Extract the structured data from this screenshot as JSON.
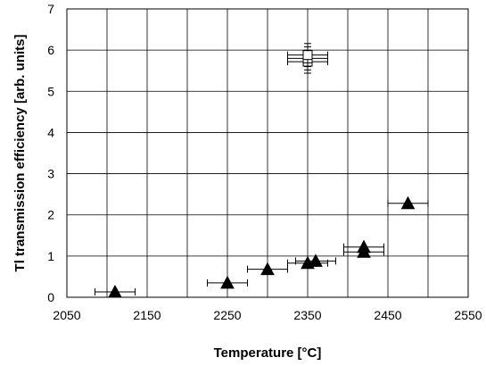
{
  "chart_data": {
    "type": "scatter",
    "title": "",
    "xlabel": "Temperature [°C]",
    "ylabel": "Tl transmission efficiency [arb. units]",
    "xlim": [
      2050,
      2550
    ],
    "ylim": [
      0,
      7
    ],
    "x_ticks": [
      2050,
      2150,
      2250,
      2350,
      2450,
      2550
    ],
    "y_ticks": [
      0,
      1,
      2,
      3,
      4,
      5,
      6,
      7
    ],
    "x_minor_step": 50,
    "grid": true,
    "legend": "none",
    "series": [
      {
        "marker": "triangle",
        "color": "#000000",
        "points": [
          {
            "x": 2110,
            "y": 0.13,
            "xerr": 25
          },
          {
            "x": 2250,
            "y": 0.35,
            "xerr": 25
          },
          {
            "x": 2300,
            "y": 0.68,
            "xerr": 25
          },
          {
            "x": 2350,
            "y": 0.83,
            "xerr": 25
          },
          {
            "x": 2360,
            "y": 0.88,
            "xerr": 25
          },
          {
            "x": 2420,
            "y": 1.1,
            "xerr": 25
          },
          {
            "x": 2420,
            "y": 1.22,
            "xerr": 25
          },
          {
            "x": 2475,
            "y": 2.28,
            "xerr": 25
          }
        ]
      },
      {
        "marker": "square",
        "color": "#ffffff",
        "points": [
          {
            "x": 2350,
            "y": 5.72,
            "xerr": 25,
            "yerr": 0.28
          },
          {
            "x": 2350,
            "y": 5.8,
            "xerr": 25,
            "yerr": 0.28
          },
          {
            "x": 2350,
            "y": 5.88,
            "xerr": 25,
            "yerr": 0.28
          }
        ]
      }
    ]
  }
}
